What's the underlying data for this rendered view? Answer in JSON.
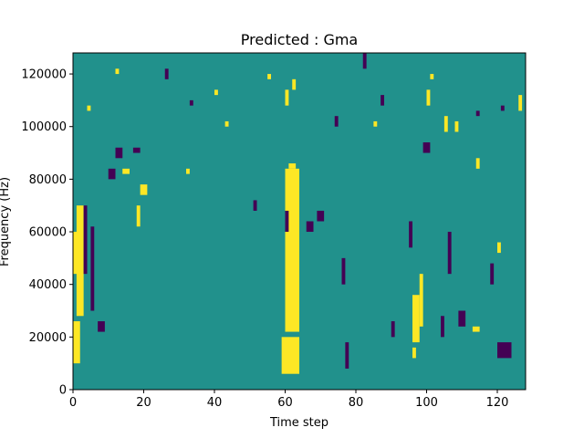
{
  "chart_data": {
    "type": "heatmap",
    "title": "Predicted : Gma",
    "xlabel": "Time step",
    "ylabel": "Frequency (Hz)",
    "xlim": [
      0,
      128
    ],
    "ylim": [
      0,
      128000
    ],
    "xticks": [
      0,
      20,
      40,
      60,
      80,
      100,
      120
    ],
    "xtick_labels": [
      "0",
      "20",
      "40",
      "60",
      "80",
      "100",
      "120"
    ],
    "yticks": [
      0,
      20000,
      40000,
      60000,
      80000,
      100000,
      120000
    ],
    "ytick_labels": [
      "0",
      "20000",
      "40000",
      "60000",
      "80000",
      "100000",
      "120000"
    ],
    "n_time_steps": 128,
    "n_freq_bins": 64,
    "freq_bin_width_hz": 2000,
    "levels": [
      -1,
      0,
      1
    ],
    "colors": {
      "-1": "#440154",
      "0": "#21918c",
      "1": "#fde725"
    },
    "background_value": 0,
    "cells": [
      {
        "value": 1,
        "t": [
          0,
          2
        ],
        "f": [
          10000,
          26000
        ]
      },
      {
        "value": 1,
        "t": [
          1,
          3
        ],
        "f": [
          28000,
          70000
        ]
      },
      {
        "value": 1,
        "t": [
          0,
          2
        ],
        "f": [
          44000,
          60000
        ]
      },
      {
        "value": 1,
        "t": [
          60,
          64
        ],
        "f": [
          22000,
          84000
        ]
      },
      {
        "value": 1,
        "t": [
          59,
          64
        ],
        "f": [
          6000,
          20000
        ]
      },
      {
        "value": 1,
        "t": [
          61,
          63
        ],
        "f": [
          84000,
          86000
        ]
      },
      {
        "value": 1,
        "t": [
          96,
          98
        ],
        "f": [
          18000,
          36000
        ]
      },
      {
        "value": 1,
        "t": [
          98,
          99
        ],
        "f": [
          24000,
          44000
        ]
      },
      {
        "value": 1,
        "t": [
          96,
          97
        ],
        "f": [
          12000,
          16000
        ]
      },
      {
        "value": 1,
        "t": [
          14,
          16
        ],
        "f": [
          82000,
          84000
        ]
      },
      {
        "value": 1,
        "t": [
          113,
          115
        ],
        "f": [
          22000,
          24000
        ]
      },
      {
        "value": 1,
        "t": [
          4,
          5
        ],
        "f": [
          106000,
          108000
        ]
      },
      {
        "value": 1,
        "t": [
          12,
          13
        ],
        "f": [
          120000,
          122000
        ]
      },
      {
        "value": 1,
        "t": [
          18,
          19
        ],
        "f": [
          62000,
          70000
        ]
      },
      {
        "value": 1,
        "t": [
          19,
          21
        ],
        "f": [
          74000,
          78000
        ]
      },
      {
        "value": 1,
        "t": [
          32,
          33
        ],
        "f": [
          82000,
          84000
        ]
      },
      {
        "value": 1,
        "t": [
          40,
          41
        ],
        "f": [
          112000,
          114000
        ]
      },
      {
        "value": 1,
        "t": [
          43,
          44
        ],
        "f": [
          100000,
          102000
        ]
      },
      {
        "value": 1,
        "t": [
          55,
          56
        ],
        "f": [
          118000,
          120000
        ]
      },
      {
        "value": 1,
        "t": [
          60,
          61
        ],
        "f": [
          108000,
          114000
        ]
      },
      {
        "value": 1,
        "t": [
          62,
          63
        ],
        "f": [
          114000,
          118000
        ]
      },
      {
        "value": 1,
        "t": [
          85,
          86
        ],
        "f": [
          100000,
          102000
        ]
      },
      {
        "value": 1,
        "t": [
          101,
          102
        ],
        "f": [
          118000,
          120000
        ]
      },
      {
        "value": 1,
        "t": [
          105,
          106
        ],
        "f": [
          98000,
          104000
        ]
      },
      {
        "value": 1,
        "t": [
          114,
          115
        ],
        "f": [
          84000,
          88000
        ]
      },
      {
        "value": 1,
        "t": [
          120,
          121
        ],
        "f": [
          52000,
          56000
        ]
      },
      {
        "value": 1,
        "t": [
          126,
          127
        ],
        "f": [
          106000,
          112000
        ]
      },
      {
        "value": 1,
        "t": [
          100,
          101
        ],
        "f": [
          108000,
          114000
        ]
      },
      {
        "value": 1,
        "t": [
          108,
          109
        ],
        "f": [
          98000,
          102000
        ]
      },
      {
        "value": -1,
        "t": [
          3,
          4
        ],
        "f": [
          44000,
          70000
        ]
      },
      {
        "value": -1,
        "t": [
          5,
          6
        ],
        "f": [
          30000,
          62000
        ]
      },
      {
        "value": -1,
        "t": [
          7,
          9
        ],
        "f": [
          22000,
          26000
        ]
      },
      {
        "value": -1,
        "t": [
          10,
          12
        ],
        "f": [
          80000,
          84000
        ]
      },
      {
        "value": -1,
        "t": [
          60,
          61
        ],
        "f": [
          60000,
          68000
        ]
      },
      {
        "value": -1,
        "t": [
          66,
          68
        ],
        "f": [
          60000,
          64000
        ]
      },
      {
        "value": -1,
        "t": [
          69,
          71
        ],
        "f": [
          64000,
          68000
        ]
      },
      {
        "value": -1,
        "t": [
          76,
          77
        ],
        "f": [
          40000,
          50000
        ]
      },
      {
        "value": -1,
        "t": [
          77,
          78
        ],
        "f": [
          8000,
          18000
        ]
      },
      {
        "value": -1,
        "t": [
          90,
          91
        ],
        "f": [
          20000,
          26000
        ]
      },
      {
        "value": -1,
        "t": [
          95,
          96
        ],
        "f": [
          54000,
          64000
        ]
      },
      {
        "value": -1,
        "t": [
          104,
          105
        ],
        "f": [
          20000,
          28000
        ]
      },
      {
        "value": -1,
        "t": [
          106,
          107
        ],
        "f": [
          44000,
          60000
        ]
      },
      {
        "value": -1,
        "t": [
          120,
          124
        ],
        "f": [
          12000,
          18000
        ]
      },
      {
        "value": -1,
        "t": [
          118,
          119
        ],
        "f": [
          40000,
          48000
        ]
      },
      {
        "value": -1,
        "t": [
          109,
          111
        ],
        "f": [
          24000,
          30000
        ]
      },
      {
        "value": -1,
        "t": [
          12,
          14
        ],
        "f": [
          88000,
          92000
        ]
      },
      {
        "value": -1,
        "t": [
          17,
          19
        ],
        "f": [
          90000,
          92000
        ]
      },
      {
        "value": -1,
        "t": [
          26,
          27
        ],
        "f": [
          118000,
          122000
        ]
      },
      {
        "value": -1,
        "t": [
          33,
          34
        ],
        "f": [
          108000,
          110000
        ]
      },
      {
        "value": -1,
        "t": [
          51,
          52
        ],
        "f": [
          68000,
          72000
        ]
      },
      {
        "value": -1,
        "t": [
          74,
          75
        ],
        "f": [
          100000,
          104000
        ]
      },
      {
        "value": -1,
        "t": [
          82,
          83
        ],
        "f": [
          122000,
          128000
        ]
      },
      {
        "value": -1,
        "t": [
          87,
          88
        ],
        "f": [
          108000,
          112000
        ]
      },
      {
        "value": -1,
        "t": [
          99,
          101
        ],
        "f": [
          90000,
          94000
        ]
      },
      {
        "value": -1,
        "t": [
          114,
          115
        ],
        "f": [
          104000,
          106000
        ]
      },
      {
        "value": -1,
        "t": [
          121,
          122
        ],
        "f": [
          106000,
          108000
        ]
      }
    ]
  }
}
